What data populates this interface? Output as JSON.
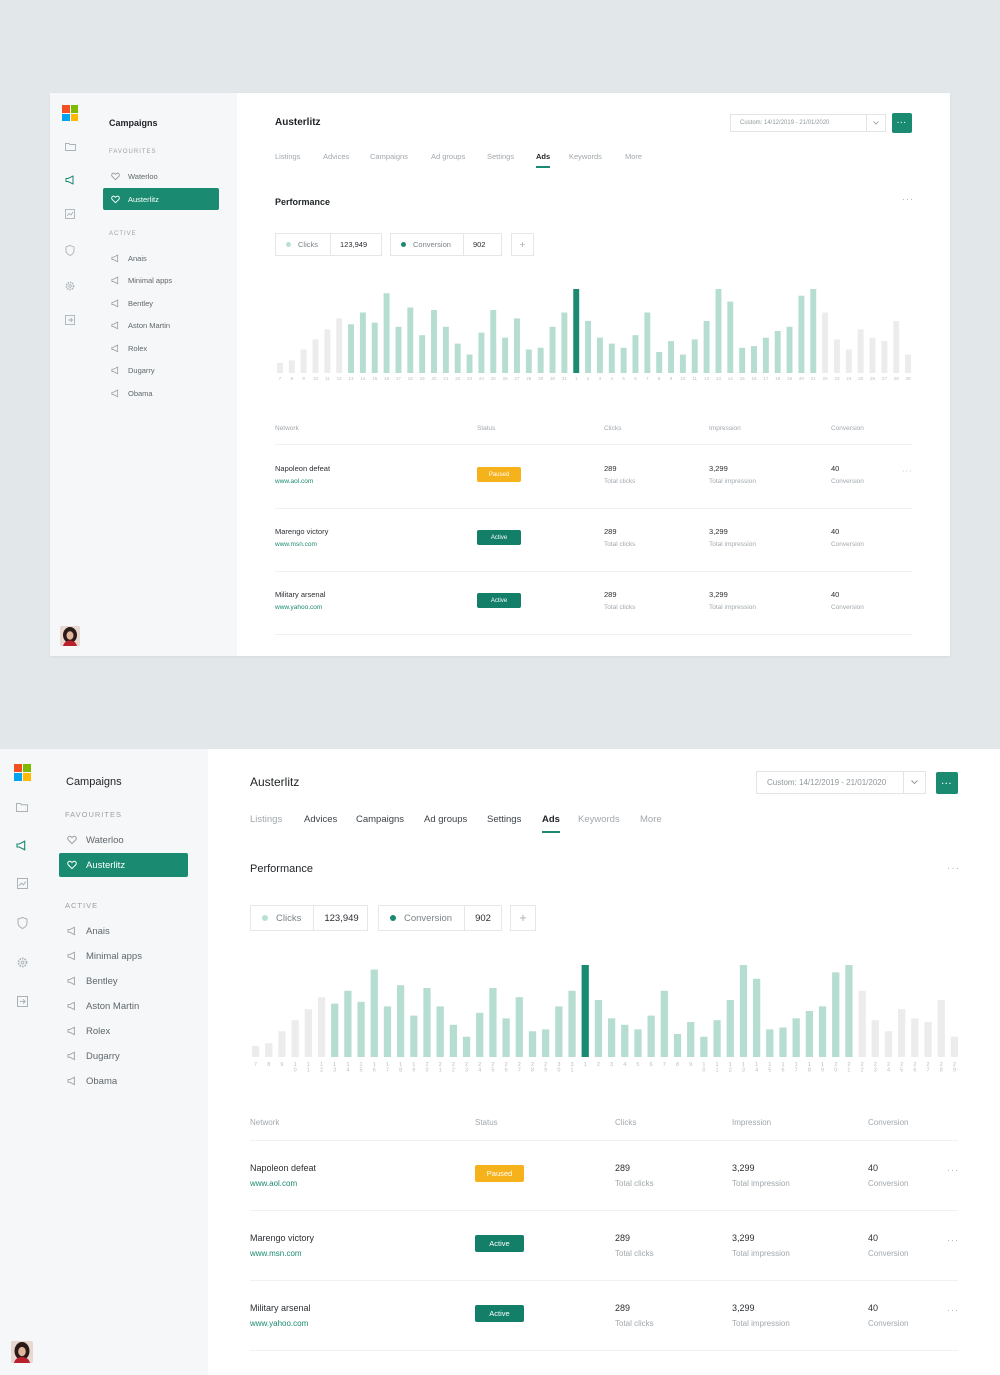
{
  "sidebar": {
    "title": "Campaigns",
    "favourites_label": "FAVOURITES",
    "active_label": "ACTIVE",
    "favourites": [
      {
        "label": "Waterloo",
        "active": false
      },
      {
        "label": "Austerlitz",
        "active": true
      }
    ],
    "active_items": [
      {
        "label": "Anais"
      },
      {
        "label": "Minimal apps"
      },
      {
        "label": "Bentley"
      },
      {
        "label": "Aston Martin"
      },
      {
        "label": "Rolex"
      },
      {
        "label": "Dugarry"
      },
      {
        "label": "Obama"
      }
    ],
    "nav_icons": [
      "folder-icon",
      "megaphone-icon",
      "chart-icon",
      "shield-icon",
      "gear-icon",
      "logout-icon"
    ],
    "active_nav_icon": "megaphone-icon"
  },
  "header": {
    "title": "Austerlitz",
    "date_range_top": "Custom: 14/12/2019 - 21/01/2020",
    "date_range_bottom": "Custom: 14/12/2019 - 21/01/2020",
    "more_label": "···"
  },
  "tabs": [
    {
      "label": "Listings"
    },
    {
      "label": "Advices"
    },
    {
      "label": "Campaigns"
    },
    {
      "label": "Ad groups"
    },
    {
      "label": "Settings"
    },
    {
      "label": "Ads",
      "active": true
    },
    {
      "label": "Keywords"
    },
    {
      "label": "More"
    }
  ],
  "performance": {
    "title": "Performance",
    "kebab": "···",
    "metrics": [
      {
        "label": "Clicks",
        "value": "123,949",
        "dot_color": "#b9e0d6"
      },
      {
        "label": "Conversion",
        "value": "902",
        "dot_color": "#1a8a70"
      }
    ],
    "add_label": "+"
  },
  "chart_data": {
    "type": "bar",
    "categories": [
      "7",
      "8",
      "9",
      "10",
      "11",
      "12",
      "13",
      "14",
      "15",
      "16",
      "17",
      "18",
      "19",
      "20",
      "21",
      "22",
      "23",
      "24",
      "25",
      "26",
      "27",
      "28",
      "29",
      "30",
      "31",
      "1",
      "2",
      "3",
      "4",
      "5",
      "6",
      "7",
      "8",
      "9",
      "10",
      "11",
      "12",
      "13",
      "14",
      "15",
      "16",
      "17",
      "18",
      "19",
      "20",
      "21",
      "22",
      "23",
      "24",
      "25",
      "26",
      "27",
      "28",
      "29"
    ],
    "values": [
      12,
      15,
      28,
      40,
      52,
      65,
      58,
      72,
      60,
      95,
      55,
      78,
      45,
      75,
      55,
      35,
      22,
      48,
      75,
      42,
      65,
      28,
      30,
      55,
      72,
      100,
      62,
      42,
      35,
      30,
      45,
      72,
      25,
      38,
      22,
      40,
      62,
      100,
      85,
      30,
      32,
      42,
      50,
      55,
      92,
      100,
      72,
      40,
      28,
      52,
      42,
      38,
      62,
      22
    ],
    "highlight_index": 25,
    "colors": {
      "past": "#ececec",
      "normal": "#b6ddd2",
      "highlight": "#1a8a70"
    },
    "grey_before": 6,
    "grey_after_index": 46,
    "xlabel": "",
    "ylabel": ""
  },
  "table": {
    "headers": {
      "network": "Network",
      "status": "Status",
      "clicks": "Clicks",
      "impression": "Impression",
      "conversion": "Conversion"
    },
    "rows": [
      {
        "name": "Napoleon defeat",
        "url": "www.aol.com",
        "status": "Paused",
        "status_type": "paused",
        "clicks": "289",
        "clicks_sub": "Total clicks",
        "impression": "3,299",
        "impression_sub": "Total impression",
        "conversion": "40",
        "conversion_sub": "Conversion"
      },
      {
        "name": "Marengo victory",
        "url": "www.msn.com",
        "status": "Active",
        "status_type": "active",
        "clicks": "289",
        "clicks_sub": "Total clicks",
        "impression": "3,299",
        "impression_sub": "Total impression",
        "conversion": "40",
        "conversion_sub": "Conversion"
      },
      {
        "name": "Military arsenal",
        "url": "www.yahoo.com",
        "status": "Active",
        "status_type": "active",
        "clicks": "289",
        "clicks_sub": "Total clicks",
        "impression": "3,299",
        "impression_sub": "Total impression",
        "conversion": "40",
        "conversion_sub": "Conversion"
      }
    ],
    "row_kebab": "···"
  }
}
